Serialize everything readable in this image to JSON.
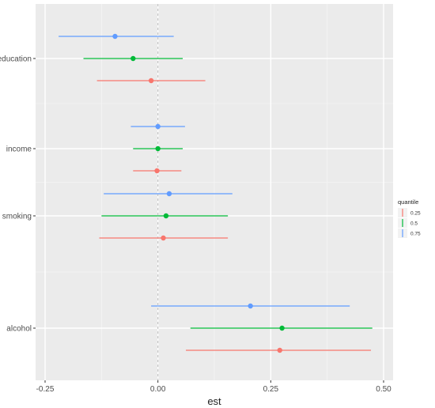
{
  "chart_data": {
    "type": "scatter",
    "variant": "point-range",
    "xlabel": "est",
    "ylabel": "",
    "xlim": [
      -0.25,
      0.5
    ],
    "x_ticks": [
      -0.25,
      0.0,
      0.25,
      0.5
    ],
    "x_tick_labels": [
      "-0.25",
      "0.00",
      "0.25",
      "0.50"
    ],
    "reference_line_x": 0,
    "grid": true,
    "legend_position": "right",
    "legend_title": "quantile",
    "categories": [
      "education",
      "income",
      "smoking",
      "alcohol"
    ],
    "series": [
      {
        "name": "0.75",
        "color": "#619CFF",
        "est": [
          -0.095,
          0.0,
          0.025,
          0.205
        ],
        "lower": [
          -0.22,
          -0.06,
          -0.12,
          -0.015
        ],
        "upper": [
          0.035,
          0.06,
          0.165,
          0.425
        ]
      },
      {
        "name": "0.5",
        "color": "#00BA38",
        "est": [
          -0.055,
          0.0,
          0.018,
          0.275
        ],
        "lower": [
          -0.165,
          -0.055,
          -0.125,
          0.072
        ],
        "upper": [
          0.055,
          0.055,
          0.155,
          0.475
        ]
      },
      {
        "name": "0.25",
        "color": "#F8766D",
        "est": [
          -0.015,
          -0.002,
          0.012,
          0.27
        ],
        "lower": [
          -0.135,
          -0.055,
          -0.13,
          0.062
        ],
        "upper": [
          0.105,
          0.052,
          0.155,
          0.472
        ]
      }
    ]
  }
}
